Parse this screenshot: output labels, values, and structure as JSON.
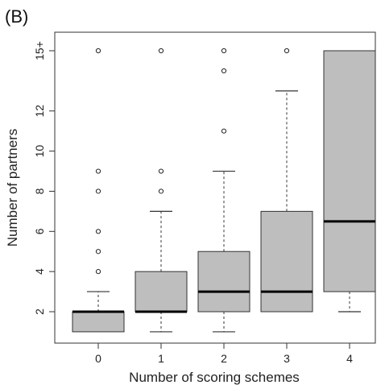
{
  "panel_label": "(B)",
  "chart_data": {
    "type": "box",
    "title": "",
    "xlabel": "Number of scoring schemes",
    "ylabel": "Number of partners",
    "categories": [
      "0",
      "1",
      "2",
      "3",
      "4"
    ],
    "y_ticks": [
      "2",
      "4",
      "6",
      "8",
      "10",
      "12",
      "15+"
    ],
    "y_tick_values": [
      2,
      4,
      6,
      8,
      10,
      12,
      15
    ],
    "ylim": [
      0.5,
      15.5
    ],
    "box_color": "#bebebe",
    "boxes": [
      {
        "category": "0",
        "whisker_low": 1,
        "q1": 1,
        "median": 2,
        "q3": 2,
        "whisker_high": 3,
        "outliers": [
          4,
          5,
          6,
          8,
          9,
          15
        ]
      },
      {
        "category": "1",
        "whisker_low": 1,
        "q1": 2,
        "median": 2,
        "q3": 4,
        "whisker_high": 7,
        "outliers": [
          8,
          9,
          15
        ]
      },
      {
        "category": "2",
        "whisker_low": 1,
        "q1": 2,
        "median": 3,
        "q3": 5,
        "whisker_high": 9,
        "outliers": [
          11,
          14,
          15
        ]
      },
      {
        "category": "3",
        "whisker_low": 2,
        "q1": 2,
        "median": 3,
        "q3": 7,
        "whisker_high": 13,
        "outliers": [
          15
        ]
      },
      {
        "category": "4",
        "whisker_low": 2,
        "q1": 3,
        "median": 6.5,
        "q3": 15,
        "whisker_high": 15,
        "outliers": []
      }
    ]
  }
}
